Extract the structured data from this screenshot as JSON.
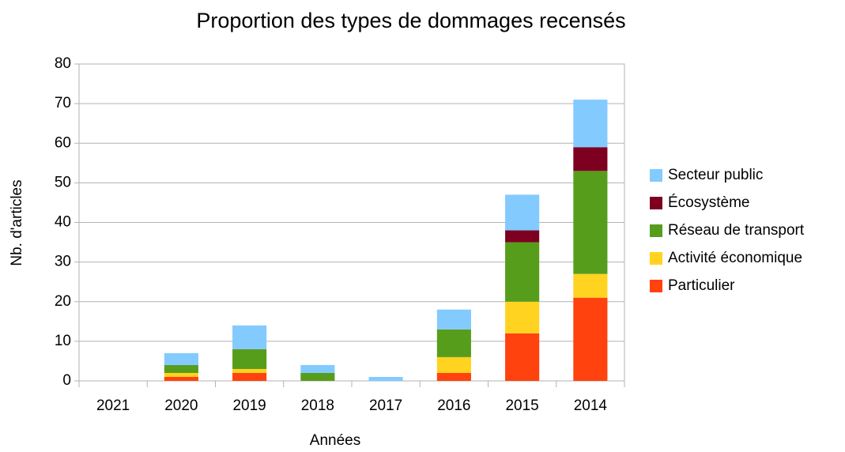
{
  "chart_data": {
    "type": "bar",
    "stacked": true,
    "title": "Proportion des types de dommages recensés",
    "x_label": "Années",
    "y_label": "Nb. d'articles",
    "categories": [
      "2021",
      "2020",
      "2019",
      "2018",
      "2017",
      "2016",
      "2015",
      "2014"
    ],
    "series": [
      {
        "name": "Particulier",
        "color": "#ff420e",
        "values": [
          0,
          1,
          2,
          0,
          0,
          2,
          12,
          21
        ]
      },
      {
        "name": "Activité économique",
        "color": "#ffd320",
        "values": [
          0,
          1,
          1,
          0,
          0,
          4,
          8,
          6
        ]
      },
      {
        "name": "Réseau de transport",
        "color": "#579d1c",
        "values": [
          0,
          2,
          5,
          2,
          0,
          7,
          15,
          26
        ]
      },
      {
        "name": "Écosystème",
        "color": "#7e0021",
        "values": [
          0,
          0,
          0,
          0,
          0,
          0,
          3,
          6
        ]
      },
      {
        "name": "Secteur public",
        "color": "#83caff",
        "values": [
          0,
          3,
          6,
          2,
          1,
          5,
          9,
          12
        ]
      }
    ],
    "ylim": [
      0,
      80
    ],
    "yticks": [
      0,
      10,
      20,
      30,
      40,
      50,
      60,
      70,
      80
    ],
    "grid": true,
    "legend": "right"
  }
}
